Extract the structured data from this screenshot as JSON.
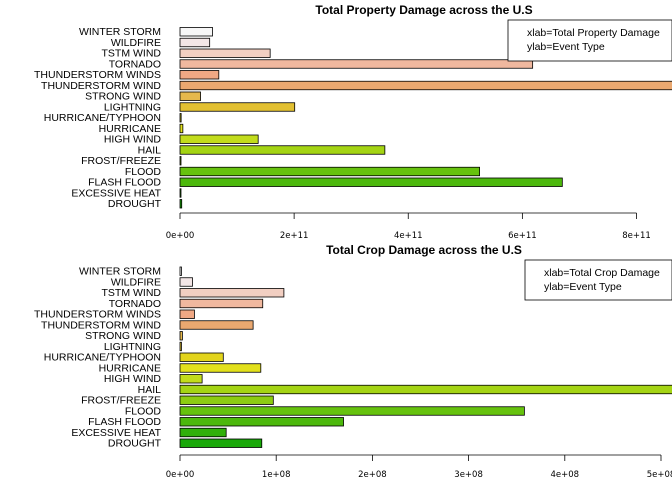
{
  "chart_data": [
    {
      "type": "bar",
      "orientation": "horizontal",
      "title": "Total Property Damage across the U.S",
      "categories": [
        "WINTER STORM",
        "WILDFIRE",
        "TSTM WIND",
        "TORNADO",
        "THUNDERSTORM WINDS",
        "THUNDERSTORM WIND",
        "STRONG WIND",
        "LIGHTNING",
        "HURRICANE/TYPHOON",
        "HURRICANE",
        "HIGH WIND",
        "HAIL",
        "FROST/FREEZE",
        "FLOOD",
        "FLASH FLOOD",
        "EXCESSIVE HEAT",
        "DROUGHT"
      ],
      "values": [
        57000000000,
        52000000000,
        158000000000,
        618000000000,
        68000000000,
        876000000000,
        36000000000,
        201000000000,
        2000000000,
        5000000000,
        137000000000,
        359000000000,
        1000000000,
        525000000000,
        670000000000,
        1000000000,
        3000000000
      ],
      "colors": [
        "#f7f7f7",
        "#f3e6e6",
        "#f2cfc2",
        "#f0b89f",
        "#f0a884",
        "#eaa870",
        "#e6b84c",
        "#e2c032",
        "#e2d41c",
        "#e2e01c",
        "#c2dc1c",
        "#a4d414",
        "#8ccc12",
        "#66c20e",
        "#4cb80c",
        "#30b00a",
        "#18a808"
      ],
      "xlim": [
        0,
        870000000000
      ],
      "xticks": [
        0,
        200000000000,
        400000000000,
        600000000000,
        800000000000
      ],
      "xtick_labels": [
        "0e+00",
        "2e+11",
        "4e+11",
        "6e+11",
        "8e+11"
      ],
      "legend": [
        "xlab=Total Property Damage",
        "ylab=Event Type"
      ],
      "legend_position": "top-right"
    },
    {
      "type": "bar",
      "orientation": "horizontal",
      "title": "Total Crop Damage across the U.S",
      "categories": [
        "WINTER STORM",
        "WILDFIRE",
        "TSTM WIND",
        "TORNADO",
        "THUNDERSTORM WINDS",
        "THUNDERSTORM WIND",
        "STRONG WIND",
        "LIGHTNING",
        "HURRICANE/TYPHOON",
        "HURRICANE",
        "HIGH WIND",
        "HAIL",
        "FROST/FREEZE",
        "FLOOD",
        "FLASH FLOOD",
        "EXCESSIVE HEAT",
        "DROUGHT"
      ],
      "values": [
        1500000,
        13000000,
        108000000,
        86000000,
        15000000,
        76000000,
        2500000,
        1500000,
        45000000,
        84000000,
        23000000,
        512000000,
        97000000,
        358000000,
        170000000,
        48000000,
        85000000
      ],
      "colors": [
        "#f7f7f7",
        "#f3e6e6",
        "#f2cfc2",
        "#f0b89f",
        "#f0a884",
        "#eaa870",
        "#e6b84c",
        "#e2c032",
        "#e2d41c",
        "#e2e01c",
        "#c2dc1c",
        "#a4d414",
        "#8ccc12",
        "#66c20e",
        "#4cb80c",
        "#30b00a",
        "#18a808"
      ],
      "xlim": [
        0,
        500000000
      ],
      "xticks": [
        0,
        100000000,
        200000000,
        300000000,
        400000000,
        500000000
      ],
      "xtick_labels": [
        "0e+00",
        "1e+08",
        "2e+08",
        "3e+08",
        "4e+08",
        "5e+08"
      ],
      "legend": [
        "xlab=Total Crop Damage",
        "ylab=Event Type"
      ],
      "legend_position": "top-right"
    }
  ]
}
